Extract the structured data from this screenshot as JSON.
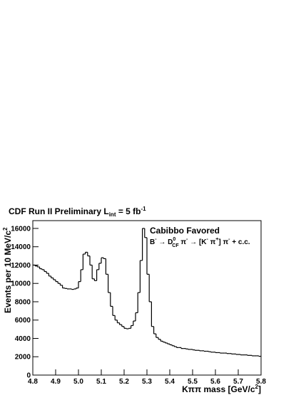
{
  "chart_data": {
    "type": "histogram",
    "title_parts": [
      "CDF Run II Preliminary L",
      "int",
      " = 5 fb",
      "-1"
    ],
    "annotation": "Cabibbo Favored",
    "decay_parts": [
      "B",
      "-",
      " → D",
      "0",
      "CF",
      " π",
      "-",
      " → [K",
      "-",
      " π",
      "+",
      "] π",
      "-",
      " + c.c."
    ],
    "ylabel_parts": [
      "Events per 10 MeV/c",
      "2"
    ],
    "xlabel_parts": [
      "Kππ mass [GeV/c",
      "2",
      "]"
    ],
    "color": "#000000",
    "bins": [
      4.8,
      4.81,
      4.82,
      4.83,
      4.84,
      4.85,
      4.86,
      4.87,
      4.88,
      4.89,
      4.9,
      4.91,
      4.92,
      4.93,
      4.94,
      4.95,
      4.96,
      4.97,
      4.98,
      4.99,
      5.0,
      5.01,
      5.02,
      5.03,
      5.04,
      5.05,
      5.06,
      5.07,
      5.08,
      5.09,
      5.1,
      5.11,
      5.12,
      5.13,
      5.14,
      5.15,
      5.16,
      5.17,
      5.18,
      5.19,
      5.2,
      5.21,
      5.22,
      5.23,
      5.24,
      5.25,
      5.26,
      5.27,
      5.28,
      5.29,
      5.3,
      5.31,
      5.32,
      5.33,
      5.34,
      5.35,
      5.36,
      5.37,
      5.38,
      5.39,
      5.4,
      5.41,
      5.42,
      5.43,
      5.44,
      5.45,
      5.46,
      5.47,
      5.48,
      5.49,
      5.5,
      5.51,
      5.52,
      5.53,
      5.54,
      5.55,
      5.56,
      5.57,
      5.58,
      5.59,
      5.6,
      5.61,
      5.62,
      5.63,
      5.64,
      5.65,
      5.66,
      5.67,
      5.68,
      5.69,
      5.7,
      5.71,
      5.72,
      5.73,
      5.74,
      5.75,
      5.76,
      5.77,
      5.78,
      5.79,
      5.8
    ],
    "values": [
      12000,
      11900,
      11800,
      11600,
      11500,
      11300,
      11100,
      10800,
      10600,
      10400,
      10200,
      10000,
      9800,
      9500,
      9450,
      9400,
      9400,
      9350,
      9400,
      9500,
      10200,
      11500,
      13200,
      13400,
      13000,
      12000,
      10500,
      10300,
      11500,
      12200,
      12800,
      12700,
      11000,
      9000,
      7500,
      6500,
      6000,
      5700,
      5500,
      5300,
      5100,
      5050,
      5100,
      5400,
      5900,
      6800,
      9000,
      12500,
      16000,
      15000,
      11000,
      8000,
      5300,
      4500,
      4100,
      3900,
      3700,
      3600,
      3500,
      3400,
      3300,
      3200,
      3100,
      3000,
      3000,
      2900,
      2900,
      2850,
      2800,
      2800,
      2750,
      2700,
      2700,
      2650,
      2650,
      2600,
      2600,
      2550,
      2500,
      2500,
      2450,
      2450,
      2400,
      2400,
      2400,
      2350,
      2350,
      2300,
      2300,
      2250,
      2250,
      2200,
      2200,
      2200,
      2150,
      2150,
      2100,
      2100,
      2100,
      2050
    ],
    "xlim": [
      4.8,
      5.8
    ],
    "xticks": [
      4.8,
      4.9,
      {
        "value": 5,
        "label": "5.0"
      },
      5.1,
      5.2,
      5.3,
      5.4,
      5.5,
      5.6,
      5.7,
      5.8
    ],
    "ylim": [
      0,
      16850
    ],
    "yticks": [
      0,
      2000,
      4000,
      6000,
      8000,
      10000,
      12000,
      14000,
      16000
    ]
  }
}
